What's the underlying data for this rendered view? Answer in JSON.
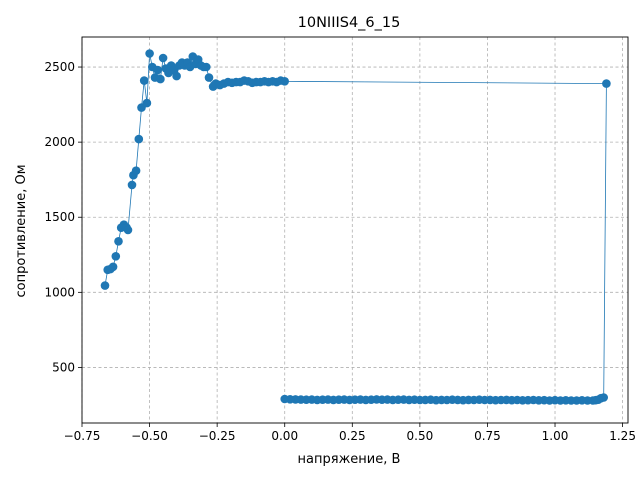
{
  "chart_data": {
    "type": "line",
    "title": "10NIIIS4_6_15",
    "xlabel": "напряжение, В",
    "ylabel": "сопротивление, Ом",
    "xlim": [
      -0.75,
      1.27
    ],
    "ylim": [
      130,
      2700
    ],
    "grid": true,
    "grid_style": "dashed",
    "marker": "circle",
    "color": "#1f77b4",
    "x_ticks": [
      -0.75,
      -0.5,
      -0.25,
      0.0,
      0.25,
      0.5,
      0.75,
      1.0,
      1.25
    ],
    "x_tick_labels": [
      "−0.75",
      "−0.50",
      "−0.25",
      "0.00",
      "0.25",
      "0.50",
      "0.75",
      "1.00",
      "1.25"
    ],
    "y_ticks": [
      500,
      1000,
      1500,
      2000,
      2500
    ],
    "y_tick_labels": [
      "500",
      "1000",
      "1500",
      "2000",
      "2500"
    ],
    "series": [
      {
        "x": [
          -0.665,
          -0.655,
          -0.645,
          -0.635,
          -0.625,
          -0.615,
          -0.605,
          -0.595,
          -0.585,
          -0.58,
          -0.565,
          -0.56,
          -0.55,
          -0.54,
          -0.53,
          -0.52,
          -0.51,
          -0.5,
          -0.49,
          -0.48,
          -0.47,
          -0.46,
          -0.45,
          -0.44,
          -0.43,
          -0.42,
          -0.41,
          -0.4,
          -0.39,
          -0.38,
          -0.37,
          -0.36,
          -0.35,
          -0.34,
          -0.33,
          -0.32,
          -0.31,
          -0.3,
          -0.29,
          -0.28,
          -0.265,
          -0.255,
          -0.24,
          -0.225,
          -0.21,
          -0.195,
          -0.18,
          -0.165,
          -0.15,
          -0.135,
          -0.12,
          -0.105,
          -0.09,
          -0.075,
          -0.06,
          -0.045,
          -0.03,
          -0.015,
          0.0,
          1.19,
          1.18,
          1.17,
          1.16,
          1.15,
          1.14,
          1.12,
          1.1,
          1.08,
          1.06,
          1.04,
          1.02,
          1.0,
          0.98,
          0.96,
          0.94,
          0.92,
          0.9,
          0.88,
          0.86,
          0.84,
          0.82,
          0.8,
          0.78,
          0.76,
          0.74,
          0.72,
          0.7,
          0.68,
          0.66,
          0.64,
          0.62,
          0.6,
          0.58,
          0.56,
          0.54,
          0.52,
          0.5,
          0.48,
          0.46,
          0.44,
          0.42,
          0.4,
          0.38,
          0.36,
          0.34,
          0.32,
          0.3,
          0.28,
          0.26,
          0.24,
          0.22,
          0.2,
          0.18,
          0.16,
          0.14,
          0.12,
          0.1,
          0.08,
          0.06,
          0.04,
          0.02,
          0.0
        ],
        "y": [
          1045,
          1150,
          1155,
          1170,
          1240,
          1340,
          1430,
          1450,
          1430,
          1415,
          1715,
          1780,
          1810,
          2020,
          2230,
          2410,
          2260,
          2590,
          2500,
          2430,
          2480,
          2420,
          2560,
          2490,
          2460,
          2510,
          2480,
          2440,
          2510,
          2530,
          2510,
          2530,
          2500,
          2570,
          2520,
          2550,
          2510,
          2500,
          2500,
          2430,
          2370,
          2390,
          2380,
          2390,
          2400,
          2395,
          2400,
          2400,
          2410,
          2405,
          2395,
          2400,
          2400,
          2405,
          2400,
          2405,
          2400,
          2410,
          2405,
          2390,
          300,
          295,
          285,
          282,
          280,
          280,
          281,
          280,
          280,
          281,
          280,
          282,
          280,
          282,
          281,
          283,
          282,
          281,
          283,
          282,
          284,
          283,
          282,
          284,
          283,
          285,
          283,
          284,
          282,
          284,
          285,
          283,
          284,
          282,
          285,
          284,
          283,
          285,
          284,
          286,
          285,
          284,
          286,
          285,
          287,
          285,
          284,
          286,
          285,
          284,
          286,
          285,
          284,
          286,
          285,
          284,
          286,
          285,
          286,
          287,
          288,
          290
        ]
      }
    ]
  }
}
